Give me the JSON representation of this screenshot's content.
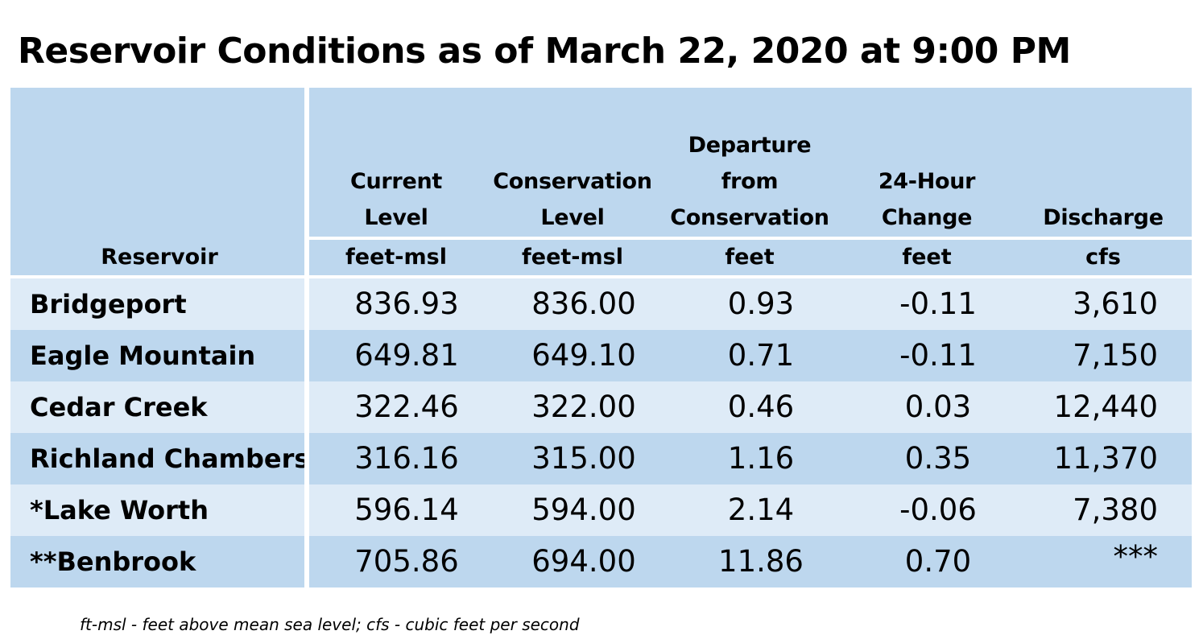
{
  "title": "Reservoir Conditions as of March 22, 2020 at 9:00 PM",
  "header": {
    "reservoir": "Reservoir",
    "columns": [
      {
        "lines": [
          "Current",
          "Level"
        ],
        "unit": "feet-msl"
      },
      {
        "lines": [
          "Conservation",
          "Level"
        ],
        "unit": "feet-msl"
      },
      {
        "lines": [
          "Departure",
          "from",
          "Conservation"
        ],
        "unit": "feet"
      },
      {
        "lines": [
          "24-Hour",
          "Change"
        ],
        "unit": "feet"
      },
      {
        "lines": [
          "Discharge"
        ],
        "unit": "cfs"
      }
    ]
  },
  "rows": [
    {
      "name": "Bridgeport",
      "current": "836.93",
      "conservation": "836.00",
      "departure": "0.93",
      "change": "-0.11",
      "discharge": "3,610"
    },
    {
      "name": "Eagle Mountain",
      "current": "649.81",
      "conservation": "649.10",
      "departure": "0.71",
      "change": "-0.11",
      "discharge": "7,150"
    },
    {
      "name": "Cedar Creek",
      "current": "322.46",
      "conservation": "322.00",
      "departure": "0.46",
      "change": "0.03",
      "discharge": "12,440"
    },
    {
      "name": "Richland Chambers",
      "current": "316.16",
      "conservation": "315.00",
      "departure": "1.16",
      "change": "0.35",
      "discharge": "11,370"
    },
    {
      "name": "*Lake Worth",
      "current": "596.14",
      "conservation": "594.00",
      "departure": "2.14",
      "change": "-0.06",
      "discharge": "7,380"
    },
    {
      "name": "**Benbrook",
      "current": "705.86",
      "conservation": "694.00",
      "departure": "11.86",
      "change": "0.70",
      "discharge": "***"
    }
  ],
  "footnote": "ft-msl - feet above mean sea level; cfs - cubic feet per second",
  "colors": {
    "header": "#bdd7ee",
    "row_light": "#deebf7",
    "row_dark": "#bdd7ee"
  }
}
